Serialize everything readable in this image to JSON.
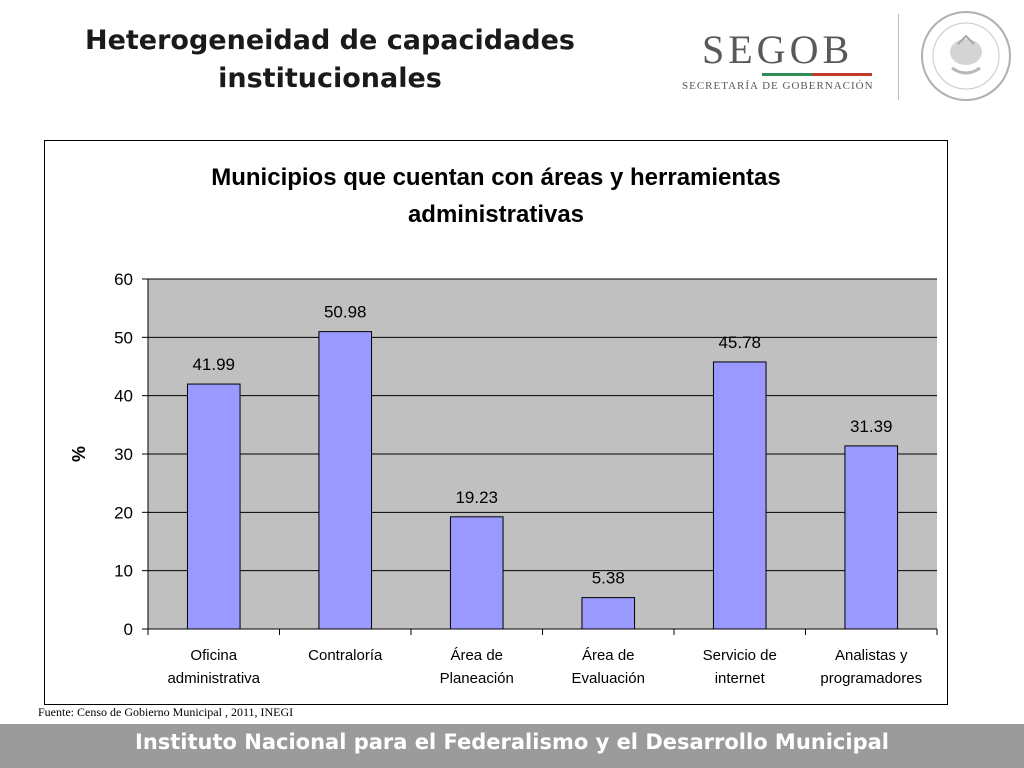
{
  "slide": {
    "title": "Heterogeneidad de capacidades institucionales",
    "logo_word": "SEGOB",
    "logo_sub": "SECRETARÍA DE GOBERNACIÓN",
    "source": "Fuente: Censo de Gobierno Municipal , 2011, INEGI",
    "footer": "Instituto Nacional para el Federalismo y el Desarrollo Municipal"
  },
  "colors": {
    "bar": "#9999ff",
    "plot_bg": "#c0c0c0",
    "footer_bg": "#9b9b9b",
    "logo_green": "#2e8b57",
    "logo_red": "#c0392b"
  },
  "chart_data": {
    "type": "bar",
    "title": "Municipios que cuentan con áreas y herramientas administrativas",
    "ylabel": "%",
    "xlabel": "",
    "ylim": [
      0,
      60
    ],
    "yticks": [
      0,
      10,
      20,
      30,
      40,
      50,
      60
    ],
    "grid": true,
    "categories": [
      [
        "Oficina",
        "administrativa"
      ],
      [
        "Contraloría"
      ],
      [
        "Área de",
        "Planeación"
      ],
      [
        "Área de",
        "Evaluación"
      ],
      [
        "Servicio de",
        "internet"
      ],
      [
        "Analistas y",
        "programadores"
      ]
    ],
    "values": [
      41.99,
      50.98,
      19.23,
      5.38,
      45.78,
      31.39
    ],
    "data_labels": [
      "41.99",
      "50.98",
      "19.23",
      "5.38",
      "45.78",
      "31.39"
    ]
  }
}
